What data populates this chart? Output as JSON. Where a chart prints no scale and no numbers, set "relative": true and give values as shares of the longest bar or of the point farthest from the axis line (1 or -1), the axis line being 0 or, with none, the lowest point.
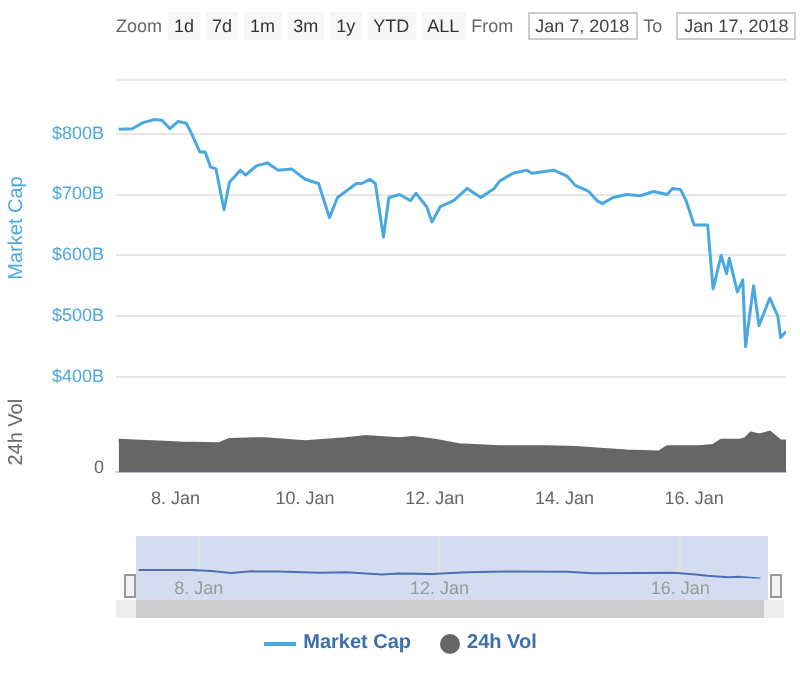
{
  "chart_data": [
    {
      "type": "line",
      "ylabel": "Market Cap",
      "legend": "bottom",
      "grid": "y",
      "tick_labels": "y",
      "annotations": [
        "Zoom",
        "1d",
        "7d",
        "1m",
        "3m",
        "1y",
        "YTD",
        "ALL",
        "From",
        "Jan 7, 2018",
        "To",
        "Jan 17, 2018"
      ],
      "xlim": [
        "2018-01-07T02:00",
        "2018-01-17T10:00"
      ],
      "ylim": [
        400,
        890
      ],
      "yticks": [
        {
          "value": 400,
          "label": "$400B"
        },
        {
          "value": 500,
          "label": "$500B"
        },
        {
          "value": 600,
          "label": "$600B"
        },
        {
          "value": 700,
          "label": "$700B"
        },
        {
          "value": 800,
          "label": "$800B"
        }
      ],
      "series": [
        {
          "name": "Market Cap",
          "color": "#4aa8e0",
          "x": [
            "2018-01-07T03:00",
            "2018-01-07T08:00",
            "2018-01-07T12:00",
            "2018-01-07T16:00",
            "2018-01-07T19:00",
            "2018-01-07T22:00",
            "2018-01-08T01:00",
            "2018-01-08T04:00",
            "2018-01-08T06:00",
            "2018-01-08T09:00",
            "2018-01-08T11:00",
            "2018-01-08T13:00",
            "2018-01-08T15:00",
            "2018-01-08T18:00",
            "2018-01-08T20:00",
            "2018-01-09T00:00",
            "2018-01-09T02:00",
            "2018-01-09T06:00",
            "2018-01-09T10:00",
            "2018-01-09T14:00",
            "2018-01-09T19:00",
            "2018-01-10T00:00",
            "2018-01-10T05:00",
            "2018-01-10T09:00",
            "2018-01-10T12:00",
            "2018-01-10T15:00",
            "2018-01-10T19:00",
            "2018-01-10T21:00",
            "2018-01-11T00:00",
            "2018-01-11T02:00",
            "2018-01-11T05:00",
            "2018-01-11T07:00",
            "2018-01-11T11:00",
            "2018-01-11T15:00",
            "2018-01-11T17:00",
            "2018-01-11T21:00",
            "2018-01-11T23:00",
            "2018-01-12T02:00",
            "2018-01-12T07:00",
            "2018-01-12T12:00",
            "2018-01-12T17:00",
            "2018-01-12T22:00",
            "2018-01-13T00:00",
            "2018-01-13T05:00",
            "2018-01-13T10:00",
            "2018-01-13T12:00",
            "2018-01-13T20:00",
            "2018-01-14T01:00",
            "2018-01-14T04:00",
            "2018-01-14T09:00",
            "2018-01-14T12:00",
            "2018-01-14T14:00",
            "2018-01-14T18:00",
            "2018-01-14T23:00",
            "2018-01-15T04:00",
            "2018-01-15T09:00",
            "2018-01-15T14:00",
            "2018-01-15T16:00",
            "2018-01-15T19:00",
            "2018-01-15T21:00",
            "2018-01-16T00:00",
            "2018-01-16T05:00",
            "2018-01-16T07:00",
            "2018-01-16T10:00",
            "2018-01-16T12:00",
            "2018-01-16T13:00",
            "2018-01-16T16:00",
            "2018-01-16T18:00",
            "2018-01-16T19:00",
            "2018-01-16T22:00",
            "2018-01-17T00:00",
            "2018-01-17T04:00",
            "2018-01-17T07:00",
            "2018-01-17T08:00",
            "2018-01-17T10:00"
          ],
          "values": [
            807,
            808,
            818,
            823,
            822,
            808,
            820,
            817,
            800,
            770,
            770,
            745,
            742,
            675,
            720,
            740,
            732,
            747,
            752,
            740,
            742,
            725,
            718,
            662,
            695,
            705,
            718,
            718,
            725,
            718,
            630,
            695,
            700,
            690,
            702,
            680,
            655,
            680,
            690,
            710,
            695,
            710,
            722,
            735,
            740,
            735,
            740,
            730,
            715,
            705,
            690,
            685,
            695,
            700,
            698,
            705,
            700,
            710,
            708,
            690,
            650,
            650,
            545,
            600,
            570,
            595,
            540,
            560,
            450,
            550,
            485,
            530,
            500,
            465,
            475
          ]
        }
      ]
    },
    {
      "type": "area",
      "ylabel": "24h Vol",
      "legend": "bottom",
      "relative": true,
      "annotations": [
        "0"
      ],
      "xlim": [
        "2018-01-07T02:00",
        "2018-01-17T10:00"
      ],
      "xticks": [
        {
          "value": "2018-01-08",
          "label": "8. Jan"
        },
        {
          "value": "2018-01-10",
          "label": "10. Jan"
        },
        {
          "value": "2018-01-12",
          "label": "12. Jan"
        },
        {
          "value": "2018-01-14",
          "label": "14. Jan"
        },
        {
          "value": "2018-01-16",
          "label": "16. Jan"
        }
      ],
      "series": [
        {
          "name": "24h Vol",
          "color": "#666666",
          "x": [
            "2018-01-07T03:00",
            "2018-01-08T02:00",
            "2018-01-08T16:00",
            "2018-01-08T20:00",
            "2018-01-09T09:00",
            "2018-01-10T00:00",
            "2018-01-10T15:00",
            "2018-01-10T22:00",
            "2018-01-11T11:00",
            "2018-01-11T16:00",
            "2018-01-12T00:00",
            "2018-01-12T09:00",
            "2018-01-13T00:00",
            "2018-01-13T17:00",
            "2018-01-14T04:00",
            "2018-01-14T23:00",
            "2018-01-15T11:00",
            "2018-01-15T14:00",
            "2018-01-16T02:00",
            "2018-01-16T07:00",
            "2018-01-16T10:00",
            "2018-01-16T17:00",
            "2018-01-16T19:00",
            "2018-01-16T21:00",
            "2018-01-17T00:00",
            "2018-01-17T04:00",
            "2018-01-17T06:00",
            "2018-01-17T08:00",
            "2018-01-17T10:00"
          ],
          "values": [
            0.8,
            0.73,
            0.71,
            0.82,
            0.84,
            0.76,
            0.84,
            0.89,
            0.84,
            0.87,
            0.8,
            0.69,
            0.64,
            0.64,
            0.62,
            0.53,
            0.51,
            0.64,
            0.64,
            0.67,
            0.8,
            0.8,
            0.84,
            0.98,
            0.93,
            1,
            0.89,
            0.78,
            0.78
          ]
        }
      ]
    },
    {
      "type": "line",
      "relative": true,
      "tick_labels": "x",
      "grid": "x",
      "xlim": [
        "2018-01-06T23:00",
        "2018-01-17T11:00"
      ],
      "xticks": [
        {
          "value": "2018-01-08",
          "label": "8. Jan"
        },
        {
          "value": "2018-01-12",
          "label": "12. Jan"
        },
        {
          "value": "2018-01-16",
          "label": "16. Jan"
        }
      ],
      "series": [
        {
          "color": "#4a6fb5",
          "x": [
            "2018-01-07T00:00",
            "2018-01-07T21:00",
            "2018-01-08T05:00",
            "2018-01-08T13:00",
            "2018-01-08T21:00",
            "2018-01-09T08:00",
            "2018-01-10T00:00",
            "2018-01-10T11:00",
            "2018-01-11T01:00",
            "2018-01-11T08:00",
            "2018-01-11T21:00",
            "2018-01-12T11:00",
            "2018-01-13T03:00",
            "2018-01-14T03:00",
            "2018-01-14T13:00",
            "2018-01-15T08:00",
            "2018-01-15T21:00",
            "2018-01-16T05:00",
            "2018-01-16T11:00",
            "2018-01-16T19:00",
            "2018-01-17T00:00",
            "2018-01-17T08:00"
          ],
          "values": [
            0.98,
            1,
            0.88,
            0.65,
            0.83,
            0.8,
            0.68,
            0.72,
            0.46,
            0.57,
            0.52,
            0.72,
            0.8,
            0.77,
            0.62,
            0.65,
            0.68,
            0.49,
            0.31,
            0.15,
            0.18,
            0
          ]
        }
      ]
    }
  ]
}
